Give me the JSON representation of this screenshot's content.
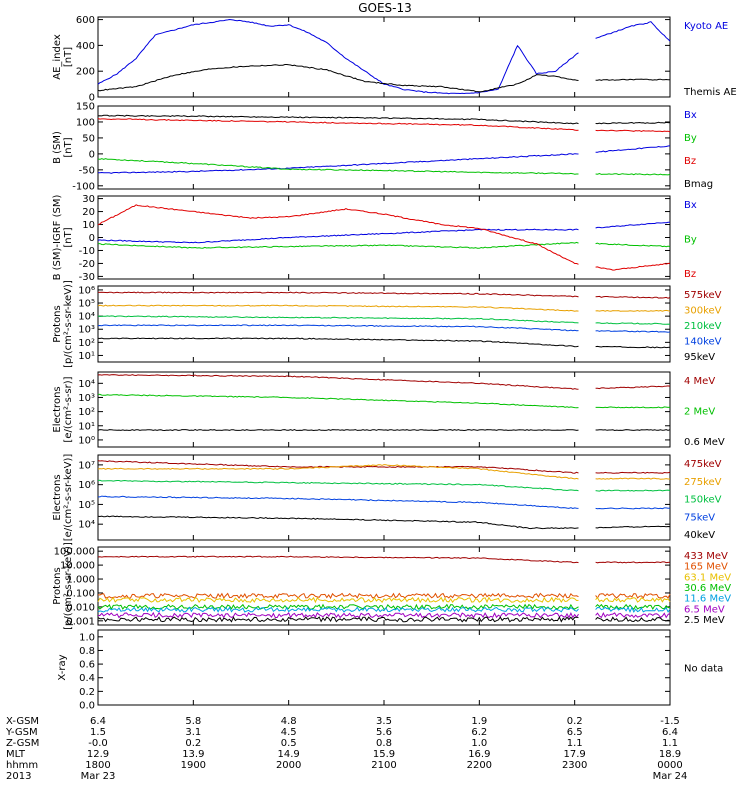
{
  "title": "GOES-13",
  "panels": [
    {
      "ylabel": [
        "AE_index",
        "[nT]"
      ],
      "ticks": [
        [
          "0",
          "0"
        ],
        [
          "200",
          "200"
        ],
        [
          "400",
          "400"
        ],
        [
          "600",
          "600"
        ]
      ],
      "legend": [
        {
          "text": "Kyoto AE",
          "color": "#0000e0"
        },
        {
          "text": "Themis AE",
          "color": "#000000"
        }
      ]
    },
    {
      "ylabel": [
        "B (SM)",
        "[nT]"
      ],
      "ticks": [
        [
          "-100",
          "-100"
        ],
        [
          "-50",
          "-50"
        ],
        [
          "0",
          "0"
        ],
        [
          "50",
          "50"
        ],
        [
          "100",
          "100"
        ],
        [
          "150",
          "150"
        ]
      ],
      "legend": [
        {
          "text": "Bx",
          "color": "#0000e0"
        },
        {
          "text": "By",
          "color": "#00c000"
        },
        {
          "text": "Bz",
          "color": "#e00000"
        },
        {
          "text": "Bmag",
          "color": "#000000"
        }
      ]
    },
    {
      "ylabel": [
        "B (SM)-IGRF (SM)",
        "[nT]"
      ],
      "ticks": [
        [
          "-30",
          "-30"
        ],
        [
          "-20",
          "-20"
        ],
        [
          "-10",
          "-10"
        ],
        [
          "0",
          "0"
        ],
        [
          "10",
          "10"
        ],
        [
          "20",
          "20"
        ],
        [
          "30",
          "30"
        ]
      ],
      "legend": [
        {
          "text": "Bx",
          "color": "#0000e0"
        },
        {
          "text": "By",
          "color": "#00c000"
        },
        {
          "text": "Bz",
          "color": "#e00000"
        }
      ]
    },
    {
      "ylabel": [
        "Protons",
        "[p/(cm²-s-sr-keV)]"
      ],
      "ticks": [
        [
          "1",
          "10¹"
        ],
        [
          "2",
          "10²"
        ],
        [
          "3",
          "10³"
        ],
        [
          "4",
          "10⁴"
        ],
        [
          "5",
          "10⁵"
        ],
        [
          "6",
          "10⁶"
        ]
      ],
      "legend": [
        {
          "text": "575keV",
          "color": "#a00000"
        },
        {
          "text": "300keV",
          "color": "#e8a000"
        },
        {
          "text": "210keV",
          "color": "#00c040"
        },
        {
          "text": "140keV",
          "color": "#0040e0"
        },
        {
          "text": "95keV",
          "color": "#000000"
        }
      ]
    },
    {
      "ylabel": [
        "Electrons",
        "[e/(cm²-s-sr)]"
      ],
      "ticks": [
        [
          "0",
          "10⁰"
        ],
        [
          "1",
          "10¹"
        ],
        [
          "2",
          "10²"
        ],
        [
          "3",
          "10³"
        ],
        [
          "4",
          "10⁴"
        ]
      ],
      "legend": [
        {
          "text": "4 MeV",
          "color": "#a00000"
        },
        {
          "text": "2 MeV",
          "color": "#00c000"
        },
        {
          "text": "0.6 MeV",
          "color": "#000000"
        }
      ]
    },
    {
      "ylabel": [
        "Electrons",
        "[e/(cm²-s-sr-keV)]"
      ],
      "ticks": [
        [
          "4",
          "10⁴"
        ],
        [
          "5",
          "10⁵"
        ],
        [
          "6",
          "10⁶"
        ],
        [
          "7",
          "10⁷"
        ]
      ],
      "legend": [
        {
          "text": "475keV",
          "color": "#a00000"
        },
        {
          "text": "275keV",
          "color": "#e8a000"
        },
        {
          "text": "150keV",
          "color": "#00c040"
        },
        {
          "text": "75keV",
          "color": "#0040e0"
        },
        {
          "text": "40keV",
          "color": "#000000"
        }
      ]
    },
    {
      "ylabel": [
        "Protons",
        "[p/(cm²-s-sr-keV)]"
      ],
      "ticks": [
        [
          "-3",
          "0.001"
        ],
        [
          "-2",
          "0.010"
        ],
        [
          "-1",
          "0.100"
        ],
        [
          "0",
          "1.000"
        ],
        [
          "1",
          "10.000"
        ],
        [
          "2",
          "100.000"
        ]
      ],
      "legend": [
        {
          "text": "433 MeV",
          "color": "#a00000"
        },
        {
          "text": "165 MeV",
          "color": "#e05000"
        },
        {
          "text": "63.1 MeV",
          "color": "#e8c000"
        },
        {
          "text": "30.6 MeV",
          "color": "#00c000"
        },
        {
          "text": "11.6 MeV",
          "color": "#00a0e0"
        },
        {
          "text": "6.5 MeV",
          "color": "#a000c0"
        },
        {
          "text": "2.5 MeV",
          "color": "#000000"
        }
      ]
    },
    {
      "ylabel": [
        "X-ray",
        ""
      ],
      "ticks": [
        [
          "0.0",
          "0.0"
        ],
        [
          "0.2",
          "0.2"
        ],
        [
          "0.4",
          "0.4"
        ],
        [
          "0.6",
          "0.6"
        ],
        [
          "0.8",
          "0.8"
        ],
        [
          "1.0",
          "1.0"
        ]
      ],
      "legend": [
        {
          "text": "No data",
          "color": "#000000"
        }
      ]
    }
  ],
  "footer": {
    "row_labels": [
      "X-GSM",
      "Y-GSM",
      "Z-GSM",
      "MLT",
      "hhmm",
      "2013"
    ],
    "columns": [
      [
        "6.4",
        "1.5",
        "-0.0",
        "12.9",
        "1800",
        "Mar 23"
      ],
      [
        "5.8",
        "3.1",
        "0.2",
        "13.9",
        "1900",
        ""
      ],
      [
        "4.8",
        "4.5",
        "0.5",
        "14.9",
        "2000",
        ""
      ],
      [
        "3.5",
        "5.6",
        "0.8",
        "15.9",
        "2100",
        ""
      ],
      [
        "1.9",
        "6.2",
        "1.0",
        "16.9",
        "2200",
        ""
      ],
      [
        "0.2",
        "6.5",
        "1.1",
        "17.9",
        "2300",
        ""
      ],
      [
        "-1.5",
        "6.4",
        "1.1",
        "18.9",
        "0000",
        "Mar 24"
      ]
    ]
  },
  "chart_data": {
    "type": "line",
    "title": "GOES-13",
    "x_range_hours": [
      18,
      24
    ],
    "data_gap_hours": [
      23.05,
      23.2
    ],
    "panels": [
      {
        "ylim": [
          0,
          620
        ],
        "series": [
          {
            "name": "Kyoto AE",
            "x": [
              18.0,
              18.2,
              18.4,
              18.6,
              18.8,
              19.0,
              19.2,
              19.4,
              19.6,
              19.8,
              20.0,
              20.2,
              20.4,
              20.6,
              20.8,
              21.0,
              21.2,
              21.4,
              21.6,
              21.8,
              22.0,
              22.2,
              22.4,
              22.6,
              22.8,
              23.0,
              23.2,
              23.4,
              23.6,
              23.8,
              24.0
            ],
            "y": [
              100,
              180,
              300,
              480,
              520,
              560,
              580,
              600,
              580,
              550,
              560,
              500,
              420,
              300,
              200,
              100,
              60,
              40,
              30,
              25,
              35,
              60,
              400,
              180,
              200,
              320,
              450,
              500,
              550,
              580,
              430
            ]
          },
          {
            "name": "Themis AE",
            "x": [
              18.0,
              18.4,
              18.8,
              19.2,
              19.6,
              20.0,
              20.4,
              20.8,
              21.2,
              21.6,
              22.0,
              22.4,
              22.6,
              22.8,
              23.0,
              23.2,
              23.6,
              24.0
            ],
            "y": [
              50,
              80,
              170,
              220,
              240,
              250,
              210,
              120,
              90,
              80,
              40,
              100,
              170,
              160,
              130,
              130,
              135,
              135
            ]
          }
        ]
      },
      {
        "ylim": [
          -110,
          150
        ],
        "series": [
          {
            "name": "Bx",
            "x": [
              18.0,
              19.0,
              20.0,
              21.0,
              22.0,
              23.0,
              24.0
            ],
            "y": [
              -60,
              -55,
              -45,
              -30,
              -15,
              0,
              25
            ]
          },
          {
            "name": "By",
            "x": [
              18.0,
              19.0,
              20.0,
              21.0,
              22.0,
              23.0,
              24.0
            ],
            "y": [
              -15,
              -30,
              -48,
              -52,
              -58,
              -62,
              -65
            ]
          },
          {
            "name": "Bz",
            "x": [
              18.0,
              19.0,
              20.0,
              21.0,
              22.0,
              23.0,
              24.0
            ],
            "y": [
              110,
              105,
              100,
              95,
              90,
              75,
              70
            ]
          },
          {
            "name": "Bmag",
            "x": [
              18.0,
              19.0,
              20.0,
              21.0,
              22.0,
              23.0,
              24.0
            ],
            "y": [
              120,
              118,
              115,
              112,
              108,
              95,
              98
            ]
          }
        ]
      },
      {
        "ylim": [
          -32,
          32
        ],
        "series": [
          {
            "name": "Bx",
            "x": [
              18.0,
              19.0,
              20.0,
              21.0,
              22.0,
              23.0,
              24.0
            ],
            "y": [
              -2,
              -4,
              0,
              3,
              6,
              6,
              12
            ]
          },
          {
            "name": "By",
            "x": [
              18.0,
              19.0,
              20.0,
              21.0,
              22.0,
              23.0,
              24.0
            ],
            "y": [
              -5,
              -8,
              -7,
              -6,
              -8,
              -4,
              -7
            ]
          },
          {
            "name": "Bz",
            "x": [
              18.0,
              18.4,
              19.0,
              19.6,
              20.0,
              20.6,
              21.0,
              21.6,
              22.0,
              22.6,
              23.0,
              23.4,
              24.0
            ],
            "y": [
              10,
              25,
              20,
              15,
              16,
              22,
              18,
              10,
              7,
              -5,
              -20,
              -25,
              -20
            ]
          }
        ]
      },
      {
        "ylim_log10": [
          0.5,
          6.3
        ],
        "series": [
          {
            "name": "575keV",
            "x": [
              18,
              20,
              22,
              23,
              24
            ],
            "y_log10": [
              5.8,
              5.8,
              5.7,
              5.5,
              5.4
            ]
          },
          {
            "name": "300keV",
            "x": [
              18,
              20,
              22,
              23,
              24
            ],
            "y_log10": [
              4.8,
              4.8,
              4.7,
              4.4,
              4.4
            ]
          },
          {
            "name": "210keV",
            "x": [
              18,
              20,
              22,
              23,
              24
            ],
            "y_log10": [
              4.0,
              3.9,
              3.8,
              3.5,
              3.4
            ]
          },
          {
            "name": "140keV",
            "x": [
              18,
              20,
              22,
              23,
              24
            ],
            "y_log10": [
              3.3,
              3.3,
              3.2,
              2.9,
              2.8
            ]
          },
          {
            "name": "95keV",
            "x": [
              18,
              20,
              22,
              23,
              24
            ],
            "y_log10": [
              2.3,
              2.3,
              2.1,
              1.7,
              1.6
            ]
          }
        ]
      },
      {
        "ylim_log10": [
          -0.5,
          4.8
        ],
        "series": [
          {
            "name": "4 MeV",
            "x": [
              18,
              20,
              22,
              23,
              24
            ],
            "y_log10": [
              4.6,
              4.5,
              4.0,
              3.6,
              3.8
            ]
          },
          {
            "name": "2 MeV",
            "x": [
              18,
              20,
              22,
              23,
              24
            ],
            "y_log10": [
              3.2,
              3.0,
              2.6,
              2.3,
              2.3
            ]
          },
          {
            "name": "0.6 MeV",
            "x": [
              18,
              20,
              22,
              23,
              24
            ],
            "y_log10": [
              0.7,
              0.7,
              0.7,
              0.7,
              0.7
            ]
          }
        ]
      },
      {
        "ylim_log10": [
          3.2,
          7.5
        ],
        "series": [
          {
            "name": "475keV",
            "x": [
              18,
              20,
              22,
              23,
              24
            ],
            "y_log10": [
              7.2,
              6.9,
              6.9,
              6.6,
              6.6
            ]
          },
          {
            "name": "275keV",
            "x": [
              18,
              20,
              21,
              22,
              23,
              24
            ],
            "y_log10": [
              6.8,
              6.8,
              7.0,
              6.8,
              6.3,
              6.3
            ]
          },
          {
            "name": "150keV",
            "x": [
              18,
              20,
              22,
              23,
              24
            ],
            "y_log10": [
              6.2,
              6.1,
              6.0,
              5.7,
              5.7
            ]
          },
          {
            "name": "75keV",
            "x": [
              18,
              20,
              22,
              23,
              24
            ],
            "y_log10": [
              5.4,
              5.3,
              5.1,
              4.8,
              4.8
            ]
          },
          {
            "name": "40keV",
            "x": [
              18,
              20,
              22,
              22.5,
              23,
              24
            ],
            "y_log10": [
              4.4,
              4.3,
              4.1,
              3.8,
              3.8,
              3.9
            ]
          }
        ]
      },
      {
        "ylim_log10": [
          -3.3,
          2.3
        ],
        "series": [
          {
            "name": "433 MeV",
            "x": [
              18,
              20,
              22,
              23,
              24
            ],
            "y_log10": [
              1.6,
              1.6,
              1.5,
              1.2,
              1.2
            ]
          },
          {
            "name": "165 MeV",
            "x": [
              18,
              24
            ],
            "y_log10": [
              -1.2,
              -1.2
            ]
          },
          {
            "name": "63.1 MeV",
            "x": [
              18,
              24
            ],
            "y_log10": [
              -1.5,
              -1.5
            ]
          },
          {
            "name": "30.6 MeV",
            "x": [
              18,
              24
            ],
            "y_log10": [
              -2.0,
              -2.0
            ]
          },
          {
            "name": "11.6 MeV",
            "x": [
              18,
              24
            ],
            "y_log10": [
              -2.2,
              -2.2
            ]
          },
          {
            "name": "6.5 MeV",
            "x": [
              18,
              24
            ],
            "y_log10": [
              -2.6,
              -2.6
            ]
          },
          {
            "name": "2.5 MeV",
            "x": [
              18,
              24
            ],
            "y_log10": [
              -2.9,
              -2.9
            ]
          }
        ]
      },
      {
        "ylim": [
          0,
          1.1
        ],
        "series": []
      }
    ]
  }
}
